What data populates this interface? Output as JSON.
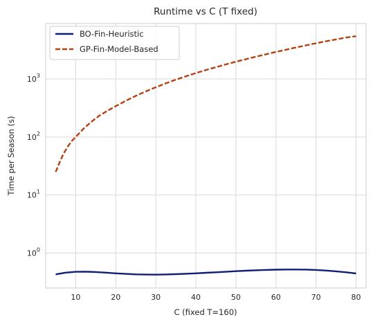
{
  "chart_data": {
    "type": "line",
    "title": "Runtime vs C (T fixed)",
    "xlabel": "C (fixed T=160)",
    "ylabel": "Time per Season (s)",
    "xlim": [
      2.5,
      82.5
    ],
    "ylim": [
      0.25,
      9000
    ],
    "yscale": "log",
    "grid": true,
    "legend_position": "top-left",
    "x_ticks": [
      10,
      20,
      30,
      40,
      50,
      60,
      70,
      80
    ],
    "x_tick_labels": [
      "10",
      "20",
      "30",
      "40",
      "50",
      "60",
      "70",
      "80"
    ],
    "y_ticks": [
      1,
      10,
      100,
      1000
    ],
    "y_tick_labels": [
      {
        "base": "10",
        "exp": "0"
      },
      {
        "base": "10",
        "exp": "1"
      },
      {
        "base": "10",
        "exp": "2"
      },
      {
        "base": "10",
        "exp": "3"
      }
    ],
    "series": [
      {
        "name": "BO-Fin-Heuristic",
        "color": "#0b1f74",
        "style": "solid",
        "x": [
          5,
          7.5,
          10,
          12.5,
          15,
          17.5,
          20,
          22.5,
          25,
          27.5,
          30,
          32.5,
          35,
          37.5,
          40,
          42.5,
          45,
          47.5,
          50,
          52.5,
          55,
          57.5,
          60,
          62.5,
          65,
          67.5,
          70,
          72.5,
          75,
          77.5,
          80
        ],
        "y": [
          0.43,
          0.46,
          0.475,
          0.478,
          0.472,
          0.46,
          0.448,
          0.438,
          0.43,
          0.426,
          0.425,
          0.428,
          0.433,
          0.44,
          0.448,
          0.457,
          0.466,
          0.476,
          0.487,
          0.497,
          0.505,
          0.512,
          0.517,
          0.52,
          0.521,
          0.519,
          0.512,
          0.5,
          0.485,
          0.466,
          0.445
        ]
      },
      {
        "name": "GP-Fin-Model-Based",
        "color": "#b5400f",
        "style": "dashed",
        "x": [
          5,
          6,
          7,
          8,
          9,
          10,
          12,
          14,
          16,
          18,
          20,
          22.5,
          25,
          27.5,
          30,
          32.5,
          35,
          37.5,
          40,
          42.5,
          45,
          47.5,
          50,
          52.5,
          55,
          57.5,
          60,
          62.5,
          65,
          67.5,
          70,
          72.5,
          75,
          77.5,
          80
        ],
        "y": [
          25,
          37,
          52,
          68,
          85,
          100,
          140,
          185,
          235,
          285,
          340,
          420,
          510,
          610,
          720,
          840,
          970,
          1110,
          1260,
          1420,
          1590,
          1780,
          1980,
          2190,
          2420,
          2660,
          2920,
          3190,
          3480,
          3790,
          4110,
          4450,
          4800,
          5170,
          5450
        ]
      }
    ]
  }
}
